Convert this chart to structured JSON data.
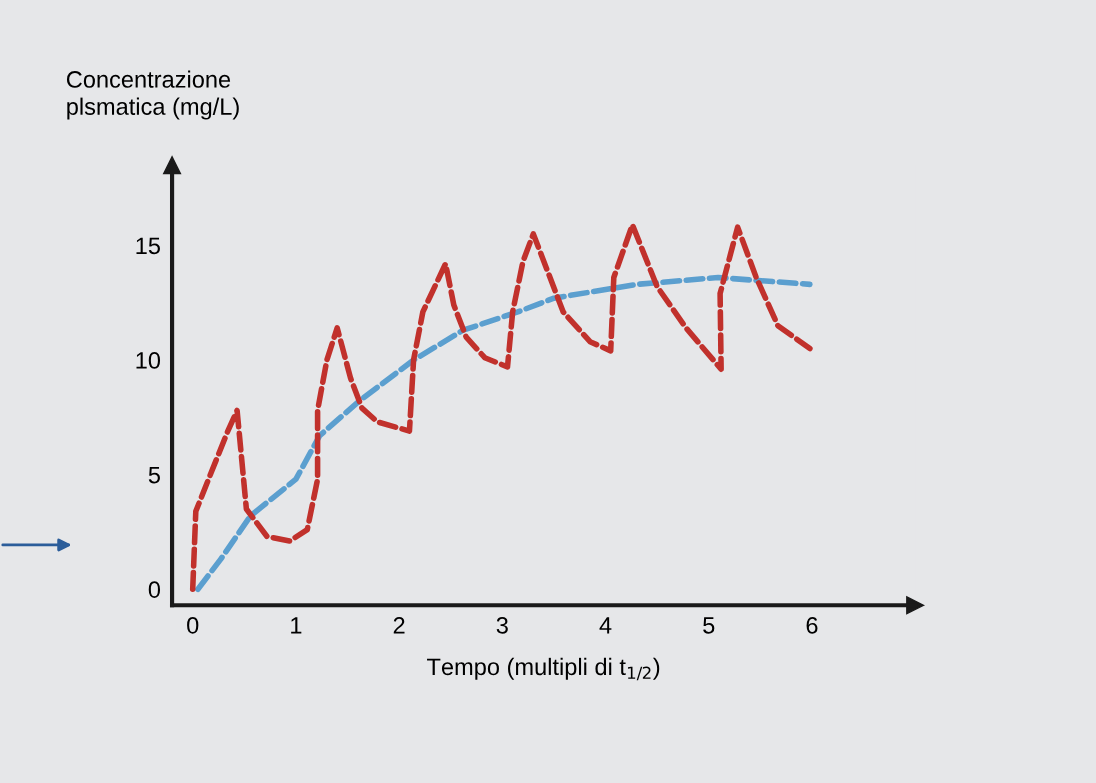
{
  "chart_data": {
    "type": "line",
    "xlabel": "Tempo (multipli di t$_{1/2}$)",
    "ylabel": "Concentrazione\nplsmatica (mg/L)",
    "xlim": [
      -0.2,
      7
    ],
    "ylim": [
      -0.7,
      18.5
    ],
    "xticks": [
      0,
      1,
      2,
      3,
      4,
      5,
      6
    ],
    "yticks": [
      0,
      5,
      10,
      15
    ],
    "grid": false,
    "line_style": "dashed",
    "series": [
      {
        "color": "#5b9fcf",
        "x": [
          0.05,
          0.27,
          0.56,
          1.0,
          1.23,
          1.61,
          2.14,
          2.62,
          3.15,
          3.5,
          4.3,
          5.09,
          5.98
        ],
        "values": [
          0,
          1.3,
          3.2,
          4.8,
          6.7,
          8.2,
          10,
          11.3,
          12.1,
          12.7,
          13.3,
          13.6,
          13.3
        ]
      },
      {
        "color": "#c1312c",
        "x": [
          0.0,
          0.03,
          0.18,
          0.34,
          0.43,
          0.52,
          0.72,
          0.94,
          1.11,
          1.21,
          1.21,
          1.3,
          1.4,
          1.53,
          1.64,
          1.79,
          2.1,
          2.14,
          2.23,
          2.45,
          2.53,
          2.65,
          2.83,
          3.05,
          3.1,
          3.2,
          3.3,
          3.59,
          3.85,
          4.05,
          4.08,
          4.26,
          4.5,
          4.78,
          5.12,
          5.11,
          5.28,
          5.46,
          5.67,
          5.98
        ],
        "values": [
          0,
          3.4,
          5.1,
          6.9,
          7.8,
          3.5,
          2.3,
          2.1,
          2.6,
          4.8,
          7.8,
          10.0,
          11.4,
          9.2,
          7.9,
          7.3,
          6.9,
          10.0,
          12.1,
          14.2,
          12.4,
          11.0,
          10.1,
          9.7,
          12.1,
          14.3,
          15.5,
          12.1,
          10.8,
          10.4,
          13.6,
          15.9,
          13.2,
          11.4,
          9.6,
          12.9,
          15.8,
          13.6,
          11.5,
          10.5
        ]
      }
    ]
  }
}
